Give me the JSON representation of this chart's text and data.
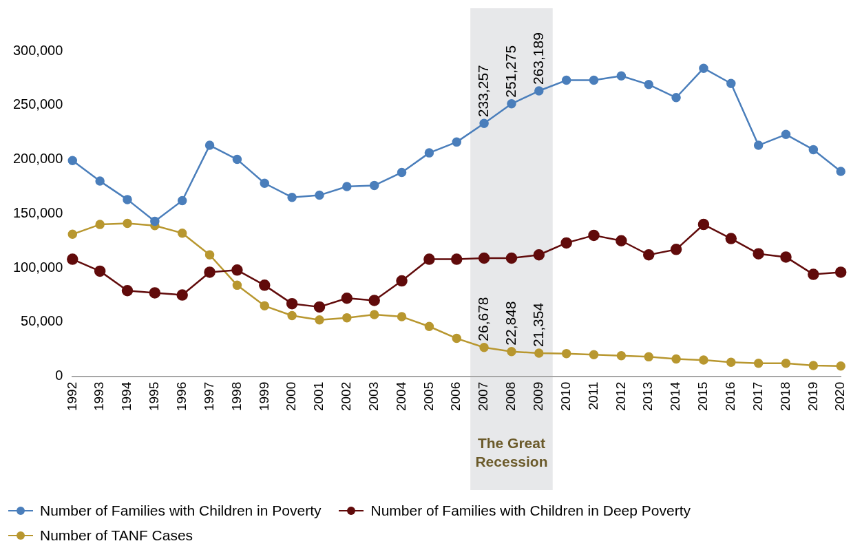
{
  "chart_data": {
    "type": "line",
    "categories": [
      "1992",
      "1993",
      "1994",
      "1995",
      "1996",
      "1997",
      "1998",
      "1999",
      "2000",
      "2001",
      "2002",
      "2003",
      "2004",
      "2005",
      "2006",
      "2007",
      "2008",
      "2009",
      "2010",
      "2011",
      "2012",
      "2013",
      "2014",
      "2015",
      "2016",
      "2017",
      "2018",
      "2019",
      "2020"
    ],
    "series": [
      {
        "name": "Number of Families with Children in Poverty",
        "color": "#4a7ebb",
        "values": [
          199000,
          180000,
          163000,
          143000,
          162000,
          213000,
          200000,
          178000,
          165000,
          167000,
          175000,
          176000,
          188000,
          206000,
          216000,
          233257,
          251275,
          263189,
          273000,
          273000,
          277000,
          269000,
          257000,
          284000,
          270000,
          213000,
          223000,
          209000,
          189000
        ],
        "value_labels": [
          null,
          null,
          null,
          null,
          null,
          null,
          null,
          null,
          null,
          null,
          null,
          null,
          null,
          null,
          null,
          "233,257",
          "251,275",
          "263,189",
          null,
          null,
          null,
          null,
          null,
          null,
          null,
          null,
          null,
          null,
          null
        ]
      },
      {
        "name": "Number of Families with Children in Deep Poverty",
        "color": "#610b0b",
        "values": [
          108000,
          97000,
          79000,
          77000,
          75000,
          96000,
          98000,
          84000,
          67000,
          64000,
          72000,
          70000,
          88000,
          108000,
          108000,
          109000,
          109000,
          112000,
          123000,
          130000,
          125000,
          112000,
          117000,
          140000,
          127000,
          113000,
          110000,
          94000,
          96000
        ]
      },
      {
        "name": "Number of TANF Cases",
        "color": "#b8972f",
        "values": [
          131000,
          140000,
          141000,
          139000,
          132000,
          112000,
          84000,
          65000,
          56000,
          52000,
          54000,
          57000,
          55000,
          46000,
          35000,
          26678,
          22848,
          21354,
          21000,
          20000,
          19000,
          18000,
          16000,
          15000,
          13000,
          12000,
          12000,
          10000,
          9500
        ],
        "value_labels": [
          null,
          null,
          null,
          null,
          null,
          null,
          null,
          null,
          null,
          null,
          null,
          null,
          null,
          null,
          null,
          "26,678",
          "22,848",
          "21,354",
          null,
          null,
          null,
          null,
          null,
          null,
          null,
          null,
          null,
          null,
          null
        ]
      }
    ],
    "ylim": [
      0,
      300000
    ],
    "yticks": [
      0,
      {
        "value": 50000,
        "label": "50,000"
      },
      {
        "value": 100000,
        "label": "100,000"
      },
      {
        "value": 150000,
        "label": "150,000"
      },
      {
        "value": 200000,
        "label": "200,000"
      },
      {
        "value": 250000,
        "label": "250,000"
      },
      {
        "value": 300000,
        "label": "300,000"
      }
    ],
    "bands": [
      {
        "axis": "x",
        "from": "2007",
        "to": "2009",
        "label": "The Great Recession",
        "color": "#e7e8ea"
      }
    ],
    "grid": false,
    "legend": "bottom",
    "marker": "circle",
    "line_style": "solid"
  }
}
